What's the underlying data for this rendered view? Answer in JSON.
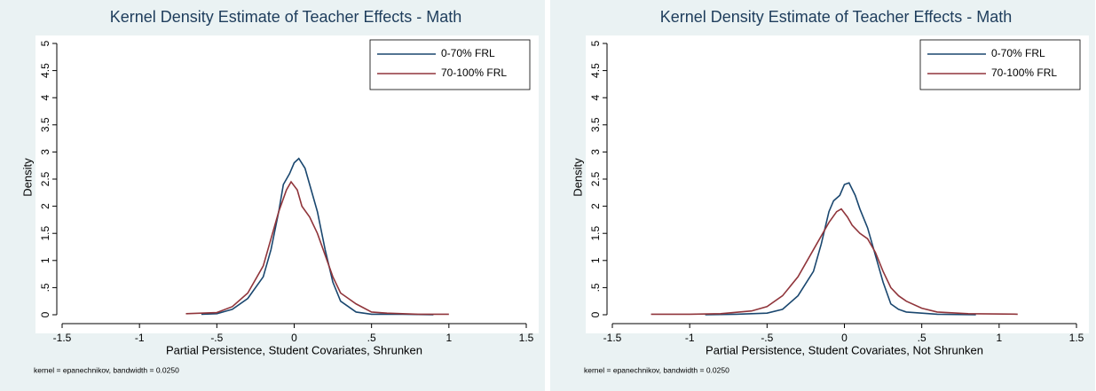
{
  "chart_data": [
    {
      "type": "line",
      "title": "Kernel Density Estimate of Teacher Effects - Math",
      "xlabel": "Partial Persistence, Student Covariates, Shrunken",
      "ylabel": "Density",
      "note": "kernel = epanechnikov, bandwidth = 0.0250",
      "legend": "top-right",
      "xlim": [
        -1.5,
        1.5
      ],
      "ylim": [
        0,
        5
      ],
      "xticks": [
        {
          "value": -1.5,
          "label": "-1.5"
        },
        -1,
        {
          "value": -0.5,
          "label": "-.5"
        },
        0,
        {
          "value": 0.5,
          "label": ".5"
        },
        1,
        1.5
      ],
      "yticks": [
        0,
        {
          "value": 0.5,
          "label": ".5"
        },
        1,
        1.5,
        2,
        2.5,
        3,
        3.5,
        4,
        4.5,
        5
      ],
      "series": [
        {
          "name": "0-70% FRL",
          "color": "#1a476f",
          "x": [
            -0.6,
            -0.5,
            -0.4,
            -0.3,
            -0.2,
            -0.15,
            -0.1,
            -0.07,
            -0.03,
            0,
            0.03,
            0.07,
            0.1,
            0.15,
            0.2,
            0.25,
            0.3,
            0.35,
            0.4,
            0.5,
            0.7,
            0.9
          ],
          "values": [
            0.01,
            0.02,
            0.1,
            0.3,
            0.7,
            1.2,
            1.9,
            2.4,
            2.6,
            2.8,
            2.88,
            2.7,
            2.4,
            1.9,
            1.2,
            0.6,
            0.25,
            0.15,
            0.05,
            0.01,
            0.01,
            0
          ]
        },
        {
          "name": "70-100% FRL",
          "color": "#90353b",
          "x": [
            -0.7,
            -0.5,
            -0.4,
            -0.3,
            -0.2,
            -0.15,
            -0.1,
            -0.05,
            -0.02,
            0.02,
            0.05,
            0.1,
            0.15,
            0.2,
            0.25,
            0.3,
            0.35,
            0.4,
            0.5,
            0.6,
            0.8,
            1.0
          ],
          "values": [
            0.02,
            0.04,
            0.15,
            0.4,
            0.9,
            1.4,
            1.9,
            2.3,
            2.45,
            2.3,
            2.0,
            1.8,
            1.5,
            1.1,
            0.7,
            0.4,
            0.3,
            0.2,
            0.05,
            0.03,
            0.01,
            0.01
          ]
        }
      ]
    },
    {
      "type": "line",
      "title": "Kernel Density Estimate of Teacher Effects - Math",
      "xlabel": "Partial Persistence, Student Covariates, Not Shrunken",
      "ylabel": "Density",
      "note": "kernel = epanechnikov, bandwidth = 0.0250",
      "legend": "top-right",
      "xlim": [
        -1.5,
        1.5
      ],
      "ylim": [
        0,
        5
      ],
      "xticks": [
        {
          "value": -1.5,
          "label": "-1.5"
        },
        -1,
        {
          "value": -0.5,
          "label": "-.5"
        },
        0,
        {
          "value": 0.5,
          "label": ".5"
        },
        1,
        1.5
      ],
      "yticks": [
        0,
        {
          "value": 0.5,
          "label": ".5"
        },
        1,
        1.5,
        2,
        2.5,
        3,
        3.5,
        4,
        4.5,
        5
      ],
      "series": [
        {
          "name": "0-70% FRL",
          "color": "#1a476f",
          "x": [
            -0.9,
            -0.7,
            -0.5,
            -0.4,
            -0.3,
            -0.2,
            -0.15,
            -0.1,
            -0.07,
            -0.03,
            0,
            0.03,
            0.07,
            0.1,
            0.15,
            0.2,
            0.25,
            0.3,
            0.35,
            0.4,
            0.6,
            0.85
          ],
          "values": [
            0,
            0.01,
            0.03,
            0.1,
            0.35,
            0.8,
            1.3,
            1.9,
            2.1,
            2.2,
            2.4,
            2.43,
            2.2,
            1.95,
            1.6,
            1.1,
            0.6,
            0.2,
            0.1,
            0.05,
            0.01,
            0
          ]
        },
        {
          "name": "70-100% FRL",
          "color": "#90353b",
          "x": [
            -1.25,
            -1,
            -0.8,
            -0.6,
            -0.5,
            -0.4,
            -0.3,
            -0.2,
            -0.1,
            -0.05,
            -0.02,
            0.02,
            0.05,
            0.1,
            0.15,
            0.2,
            0.25,
            0.3,
            0.35,
            0.4,
            0.5,
            0.6,
            0.8,
            1.12
          ],
          "values": [
            0.01,
            0.01,
            0.02,
            0.07,
            0.15,
            0.35,
            0.7,
            1.2,
            1.7,
            1.9,
            1.95,
            1.8,
            1.65,
            1.5,
            1.4,
            1.15,
            0.8,
            0.5,
            0.35,
            0.25,
            0.12,
            0.05,
            0.02,
            0.01
          ]
        }
      ]
    }
  ]
}
